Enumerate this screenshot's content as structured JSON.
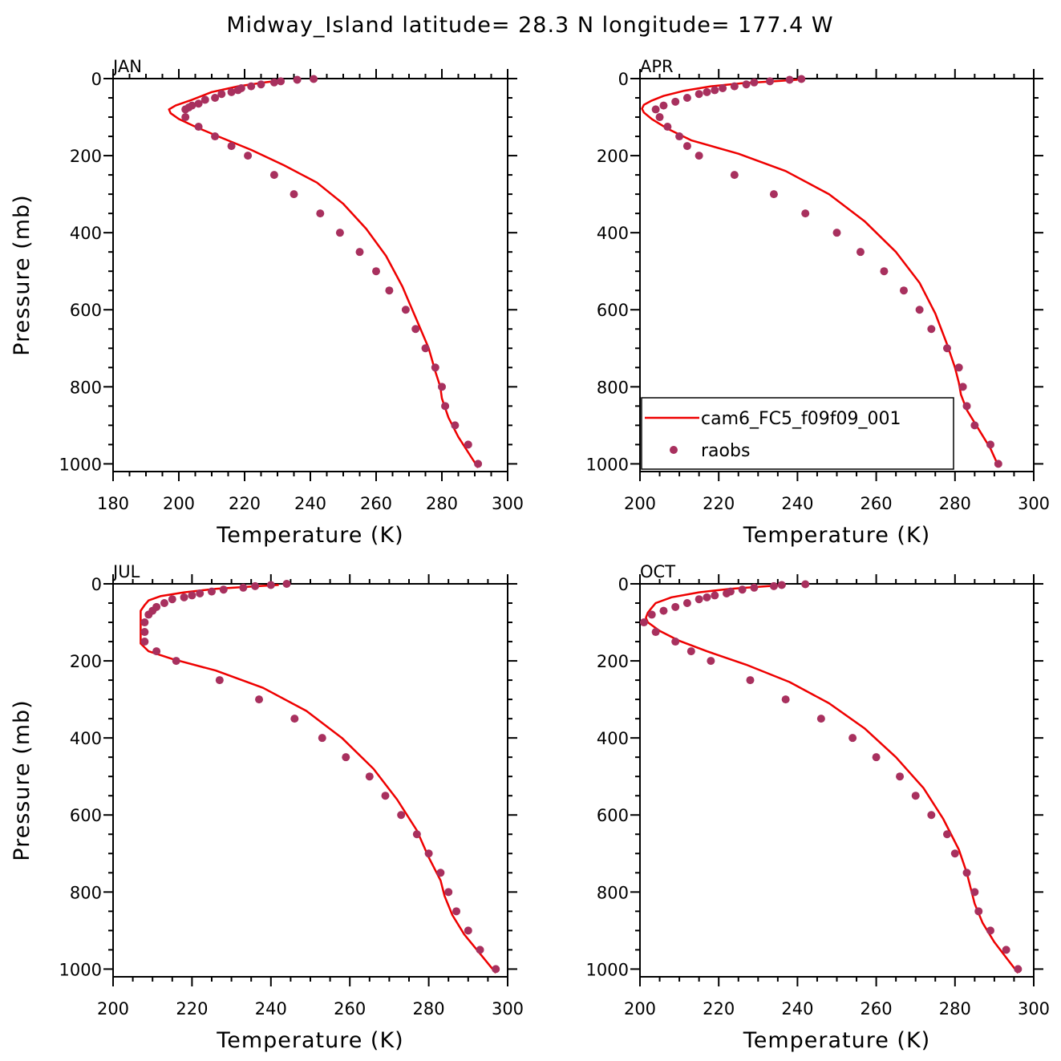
{
  "figure": {
    "title": "Midway_Island  latitude= 28.3 N longitude= 177.4 W"
  },
  "legend": {
    "panel_index": 1,
    "placement": "lower-left",
    "entries": [
      {
        "label": "cam6_FC5_f09f09_001",
        "kind": "line",
        "color": "#ee0000"
      },
      {
        "label": "raobs",
        "kind": "marker",
        "color": "#a8305e"
      }
    ]
  },
  "chart_data": [
    {
      "type": "line",
      "panel": "JAN",
      "xlabel": "Temperature (K)",
      "ylabel": "Pressure (mb)",
      "xlim": [
        180,
        300
      ],
      "ylim": [
        1020,
        0
      ],
      "xticks": [
        180,
        200,
        220,
        240,
        260,
        280,
        300
      ],
      "yticks": [
        0,
        200,
        400,
        600,
        800,
        1000
      ],
      "grid": false,
      "series": [
        {
          "name": "cam6_FC5_f09f09_001",
          "color": "#ee0000",
          "points": [
            [
              231,
              5
            ],
            [
              226,
              10
            ],
            [
              218,
              20
            ],
            [
              210,
              35
            ],
            [
              204,
              55
            ],
            [
              199,
              70
            ],
            [
              197,
              80
            ],
            [
              197.5,
              90
            ],
            [
              200,
              105
            ],
            [
              205,
              125
            ],
            [
              212,
              150
            ],
            [
              222,
              185
            ],
            [
              232,
              225
            ],
            [
              242,
              270
            ],
            [
              250,
              325
            ],
            [
              257,
              390
            ],
            [
              263,
              460
            ],
            [
              268,
              540
            ],
            [
              272,
              620
            ],
            [
              276,
              700
            ],
            [
              278,
              760
            ],
            [
              279.5,
              800
            ],
            [
              280,
              830
            ],
            [
              282,
              880
            ],
            [
              285,
              930
            ],
            [
              288,
              970
            ],
            [
              291,
              1010
            ]
          ]
        },
        {
          "name": "raobs",
          "color": "#a8305e",
          "points": [
            [
              241,
              1
            ],
            [
              236,
              3
            ],
            [
              231,
              7
            ],
            [
              229,
              10
            ],
            [
              225,
              15
            ],
            [
              222,
              20
            ],
            [
              219,
              25
            ],
            [
              218,
              30
            ],
            [
              216,
              35
            ],
            [
              213,
              40
            ],
            [
              211,
              50
            ],
            [
              208,
              55
            ],
            [
              206,
              65
            ],
            [
              204,
              70
            ],
            [
              203,
              75
            ],
            [
              202,
              80
            ],
            [
              202,
              100
            ],
            [
              206,
              125
            ],
            [
              211,
              150
            ],
            [
              216,
              175
            ],
            [
              221,
              200
            ],
            [
              229,
              250
            ],
            [
              235,
              300
            ],
            [
              243,
              350
            ],
            [
              249,
              400
            ],
            [
              255,
              450
            ],
            [
              260,
              500
            ],
            [
              264,
              550
            ],
            [
              269,
              600
            ],
            [
              272,
              650
            ],
            [
              275,
              700
            ],
            [
              278,
              750
            ],
            [
              280,
              800
            ],
            [
              281,
              850
            ],
            [
              284,
              900
            ],
            [
              288,
              950
            ],
            [
              291,
              1000
            ]
          ]
        }
      ]
    },
    {
      "type": "line",
      "panel": "APR",
      "xlabel": "Temperature (K)",
      "ylabel": "",
      "xlim": [
        200,
        300
      ],
      "ylim": [
        1020,
        0
      ],
      "xticks": [
        200,
        220,
        240,
        260,
        280,
        300
      ],
      "yticks": [
        0,
        200,
        400,
        600,
        800,
        1000
      ],
      "grid": false,
      "series": [
        {
          "name": "cam6_FC5_f09f09_001",
          "color": "#ee0000",
          "points": [
            [
              240,
              3
            ],
            [
              234,
              7
            ],
            [
              226,
              12
            ],
            [
              218,
              20
            ],
            [
              211,
              32
            ],
            [
              206,
              45
            ],
            [
              203,
              57
            ],
            [
              201,
              68
            ],
            [
              200.5,
              78
            ],
            [
              201,
              88
            ],
            [
              203,
              105
            ],
            [
              207,
              130
            ],
            [
              213,
              160
            ],
            [
              225,
              195
            ],
            [
              237,
              240
            ],
            [
              248,
              300
            ],
            [
              257,
              370
            ],
            [
              265,
              450
            ],
            [
              271,
              530
            ],
            [
              275,
              610
            ],
            [
              278,
              690
            ],
            [
              280,
              750
            ],
            [
              281,
              790
            ],
            [
              281.5,
              820
            ],
            [
              283,
              860
            ],
            [
              286,
              910
            ],
            [
              289,
              960
            ],
            [
              291,
              1005
            ]
          ]
        },
        {
          "name": "raobs",
          "color": "#a8305e",
          "points": [
            [
              241,
              1
            ],
            [
              238,
              3
            ],
            [
              233,
              7
            ],
            [
              229,
              10
            ],
            [
              227,
              15
            ],
            [
              224,
              20
            ],
            [
              221,
              25
            ],
            [
              219,
              30
            ],
            [
              217,
              35
            ],
            [
              215,
              40
            ],
            [
              212,
              50
            ],
            [
              209,
              60
            ],
            [
              206,
              70
            ],
            [
              204,
              80
            ],
            [
              205,
              100
            ],
            [
              207,
              125
            ],
            [
              210,
              150
            ],
            [
              212,
              175
            ],
            [
              215,
              200
            ],
            [
              224,
              250
            ],
            [
              234,
              300
            ],
            [
              242,
              350
            ],
            [
              250,
              400
            ],
            [
              256,
              450
            ],
            [
              262,
              500
            ],
            [
              267,
              550
            ],
            [
              271,
              600
            ],
            [
              274,
              650
            ],
            [
              278,
              700
            ],
            [
              281,
              750
            ],
            [
              282,
              800
            ],
            [
              283,
              850
            ],
            [
              285,
              900
            ],
            [
              289,
              950
            ],
            [
              291,
              1000
            ]
          ]
        }
      ]
    },
    {
      "type": "line",
      "panel": "JUL",
      "xlabel": "Temperature (K)",
      "ylabel": "Pressure (mb)",
      "xlim": [
        200,
        300
      ],
      "ylim": [
        1020,
        0
      ],
      "xticks": [
        200,
        220,
        240,
        260,
        280,
        300
      ],
      "yticks": [
        0,
        200,
        400,
        600,
        800,
        1000
      ],
      "grid": false,
      "series": [
        {
          "name": "cam6_FC5_f09f09_001",
          "color": "#ee0000",
          "points": [
            [
              242,
              3
            ],
            [
              235,
              7
            ],
            [
              226,
              13
            ],
            [
              218,
              22
            ],
            [
              212,
              32
            ],
            [
              209,
              43
            ],
            [
              208,
              55
            ],
            [
              207,
              70
            ],
            [
              207,
              90
            ],
            [
              207,
              120
            ],
            [
              207,
              155
            ],
            [
              209,
              175
            ],
            [
              215,
              195
            ],
            [
              226,
              225
            ],
            [
              238,
              270
            ],
            [
              249,
              330
            ],
            [
              258,
              400
            ],
            [
              266,
              480
            ],
            [
              272,
              560
            ],
            [
              277,
              640
            ],
            [
              280,
              710
            ],
            [
              283,
              770
            ],
            [
              284,
              810
            ],
            [
              286,
              860
            ],
            [
              289,
              910
            ],
            [
              293,
              960
            ],
            [
              297,
              1010
            ]
          ]
        },
        {
          "name": "raobs",
          "color": "#a8305e",
          "points": [
            [
              244,
              0
            ],
            [
              240,
              3
            ],
            [
              236,
              6
            ],
            [
              233,
              10
            ],
            [
              228,
              15
            ],
            [
              225,
              20
            ],
            [
              222,
              25
            ],
            [
              220,
              30
            ],
            [
              218,
              35
            ],
            [
              215,
              40
            ],
            [
              213,
              50
            ],
            [
              211,
              60
            ],
            [
              210,
              70
            ],
            [
              209,
              80
            ],
            [
              208,
              100
            ],
            [
              208,
              125
            ],
            [
              208,
              150
            ],
            [
              211,
              175
            ],
            [
              216,
              200
            ],
            [
              227,
              250
            ],
            [
              237,
              300
            ],
            [
              246,
              350
            ],
            [
              253,
              400
            ],
            [
              259,
              450
            ],
            [
              265,
              500
            ],
            [
              269,
              550
            ],
            [
              273,
              600
            ],
            [
              277,
              650
            ],
            [
              280,
              700
            ],
            [
              283,
              750
            ],
            [
              285,
              800
            ],
            [
              287,
              850
            ],
            [
              290,
              900
            ],
            [
              293,
              950
            ],
            [
              297,
              1000
            ]
          ]
        }
      ]
    },
    {
      "type": "line",
      "panel": "OCT",
      "xlabel": "Temperature (K)",
      "ylabel": "",
      "xlim": [
        200,
        300
      ],
      "ylim": [
        1020,
        0
      ],
      "xticks": [
        200,
        220,
        240,
        260,
        280,
        300
      ],
      "yticks": [
        0,
        200,
        400,
        600,
        800,
        1000
      ],
      "grid": false,
      "series": [
        {
          "name": "cam6_FC5_f09f09_001",
          "color": "#ee0000",
          "points": [
            [
              237,
              3
            ],
            [
              231,
              7
            ],
            [
              223,
              13
            ],
            [
              215,
              22
            ],
            [
              208,
              35
            ],
            [
              204,
              50
            ],
            [
              203,
              62
            ],
            [
              202,
              75
            ],
            [
              201.5,
              88
            ],
            [
              202,
              100
            ],
            [
              205,
              122
            ],
            [
              210,
              148
            ],
            [
              217,
              175
            ],
            [
              227,
              210
            ],
            [
              238,
              255
            ],
            [
              248,
              310
            ],
            [
              257,
              375
            ],
            [
              265,
              450
            ],
            [
              272,
              530
            ],
            [
              277,
              610
            ],
            [
              281,
              690
            ],
            [
              283,
              750
            ],
            [
              284,
              790
            ],
            [
              285,
              830
            ],
            [
              287,
              880
            ],
            [
              290,
              930
            ],
            [
              293,
              970
            ],
            [
              296,
              1010
            ]
          ]
        },
        {
          "name": "raobs",
          "color": "#a8305e",
          "points": [
            [
              242,
              1
            ],
            [
              236,
              3
            ],
            [
              234,
              6
            ],
            [
              229,
              10
            ],
            [
              226,
              15
            ],
            [
              223,
              20
            ],
            [
              222,
              25
            ],
            [
              219,
              30
            ],
            [
              217,
              35
            ],
            [
              215,
              40
            ],
            [
              212,
              50
            ],
            [
              209,
              60
            ],
            [
              206,
              70
            ],
            [
              203,
              80
            ],
            [
              201,
              100
            ],
            [
              204,
              125
            ],
            [
              209,
              150
            ],
            [
              213,
              175
            ],
            [
              218,
              200
            ],
            [
              228,
              250
            ],
            [
              237,
              300
            ],
            [
              246,
              350
            ],
            [
              254,
              400
            ],
            [
              260,
              450
            ],
            [
              266,
              500
            ],
            [
              270,
              550
            ],
            [
              274,
              600
            ],
            [
              278,
              650
            ],
            [
              280,
              700
            ],
            [
              283,
              750
            ],
            [
              285,
              800
            ],
            [
              286,
              850
            ],
            [
              289,
              900
            ],
            [
              293,
              950
            ],
            [
              296,
              1000
            ]
          ]
        }
      ]
    }
  ]
}
